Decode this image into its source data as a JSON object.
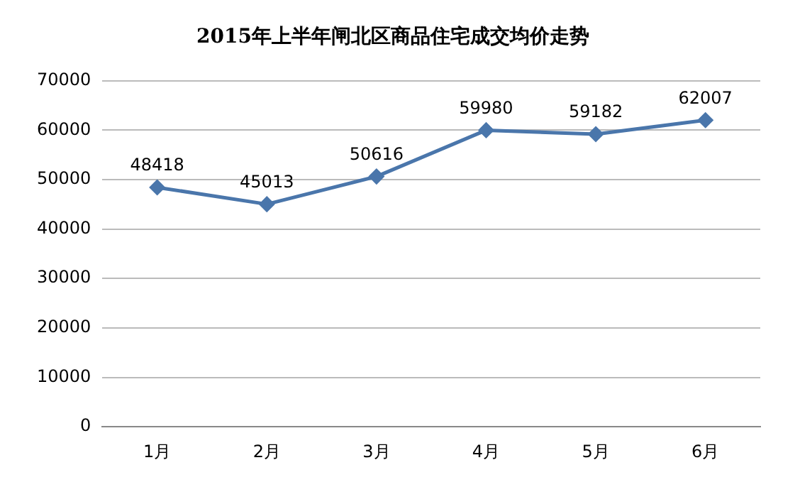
{
  "chart_data": {
    "type": "line",
    "title": "2015年上半年闸北区商品住宅成交均价走势",
    "categories": [
      "1月",
      "2月",
      "3月",
      "4月",
      "5月",
      "6月"
    ],
    "series": [
      {
        "color": "#4a76ab",
        "values": [
          48418,
          45013,
          50616,
          59980,
          59182,
          62007
        ]
      }
    ],
    "ylim": [
      0,
      70000
    ],
    "yticks": [
      0,
      10000,
      20000,
      30000,
      40000,
      50000,
      60000,
      70000
    ],
    "grid": "y",
    "legend": false,
    "marker": "diamond",
    "line_style": "solid",
    "data_labels": true
  }
}
